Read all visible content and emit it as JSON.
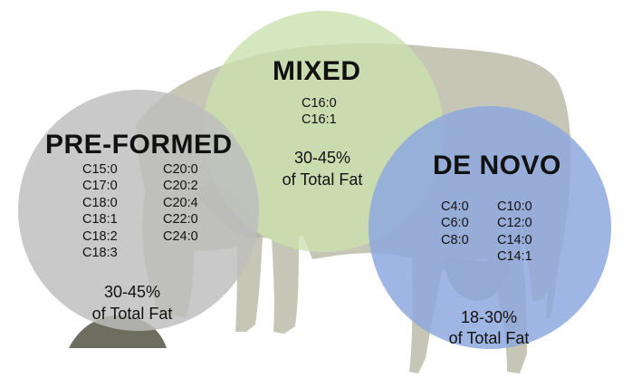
{
  "groups": {
    "mixed": {
      "title": "MIXED",
      "fatty_acids": [
        "C16:0",
        "C16:1"
      ],
      "pct": "30-45%",
      "pct_label": "of Total Fat",
      "color": "#c9e0ad"
    },
    "preformed": {
      "title": "PRE-FORMED",
      "fatty_acids_left": [
        "C15:0",
        "C17:0",
        "C18:0",
        "C18:1",
        "C18:2",
        "C18:3"
      ],
      "fatty_acids_right": [
        "C20:0",
        "C20:2",
        "C20:4",
        "C22:0",
        "C24:0"
      ],
      "pct": "30-45%",
      "pct_label": "of Total Fat",
      "color": "#c8c8c8"
    },
    "denovo": {
      "title": "DE NOVO",
      "fatty_acids_left": [
        "C4:0",
        "C6:0",
        "C8:0"
      ],
      "fatty_acids_right": [
        "C10:0",
        "C12:0",
        "C14:0",
        "C14:1"
      ],
      "pct": "18-30%",
      "pct_label": "of Total Fat",
      "color": "#8aa6dc"
    }
  },
  "colors": {
    "cow_body": "#c6c6b6",
    "cow_shade": "#b4b4a4",
    "feed_mound": "#6e6e60",
    "text": "#111111"
  }
}
